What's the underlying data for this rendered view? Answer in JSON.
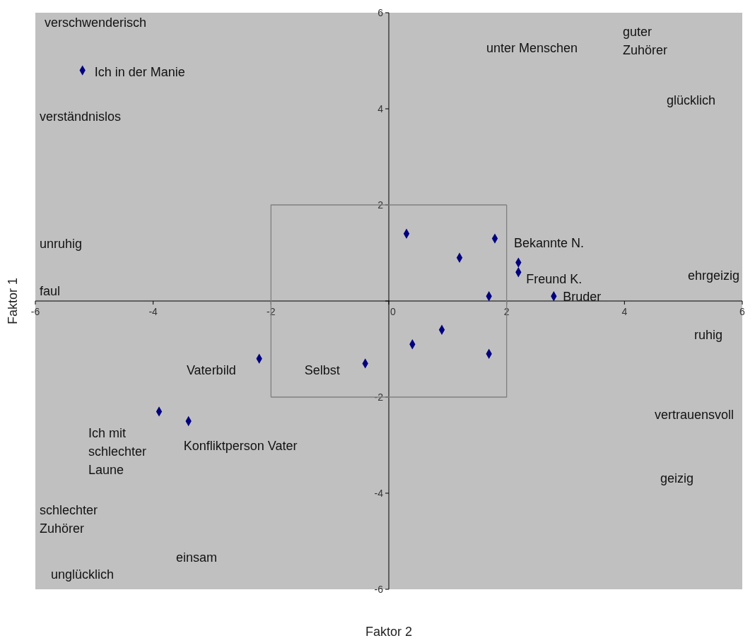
{
  "chart_data": {
    "type": "scatter",
    "xlabel": "Faktor 2",
    "ylabel": "Faktor 1",
    "xlim": [
      -6,
      6
    ],
    "ylim": [
      -6,
      6
    ],
    "xticks": [
      -6,
      -4,
      -2,
      0,
      2,
      4,
      6
    ],
    "yticks": [
      -6,
      -4,
      -2,
      {
        "value": 0,
        "label": null
      },
      2,
      4,
      6
    ],
    "grid": false,
    "marker": "diamond",
    "series": [
      {
        "color": "#000080",
        "x": [
          -5.2,
          0.3,
          1.8,
          1.2,
          2.2,
          2.2,
          1.7,
          2.8,
          0.9,
          0.4,
          1.7,
          -0.4,
          -2.2,
          -3.9,
          -3.4
        ],
        "values": [
          4.8,
          1.4,
          1.3,
          0.9,
          0.8,
          0.6,
          0.1,
          0.1,
          -0.6,
          -0.9,
          -1.1,
          -1.3,
          -1.2,
          -2.3,
          -2.5
        ]
      },
      {
        "type": "line",
        "color": "#808080",
        "marker": "none",
        "x": [
          -2,
          2,
          2
        ],
        "values": [
          -2,
          -2,
          2
        ]
      },
      {
        "type": "line",
        "color": "#808080",
        "marker": "none",
        "x": [
          2,
          -2,
          -2
        ],
        "values": [
          2,
          2,
          -2
        ]
      }
    ],
    "annotations": [
      "verschwenderisch",
      {
        "text": "Ich in der Manie",
        "x": -5.2,
        "y": 4.8
      },
      "verständnislos",
      "unruhig",
      "faul",
      "unter Menschen",
      "guter\nZuhörer",
      "glücklich",
      {
        "text": "Bekannte N.",
        "x": 1.8,
        "y": 1.3
      },
      "ehrgeizig",
      {
        "text": "Freund K.",
        "x": 2.2,
        "y": 0.6
      },
      {
        "text": "Bruder",
        "x": 2.8,
        "y": 0.1
      },
      "ruhig",
      {
        "text": "Vaterbild",
        "x": -2.2,
        "y": -1.2
      },
      {
        "text": "Selbst",
        "x": -0.4,
        "y": -1.3
      },
      "vertrauensvoll",
      {
        "text": "Ich mit\nschlechter\nLaune",
        "x": -3.9,
        "y": -2.3
      },
      {
        "text": "Konfliktperson Vater",
        "x": -3.4,
        "y": -2.5
      },
      "geizig",
      "schlechter\nZuhörer",
      "einsam",
      "unglücklich"
    ]
  }
}
